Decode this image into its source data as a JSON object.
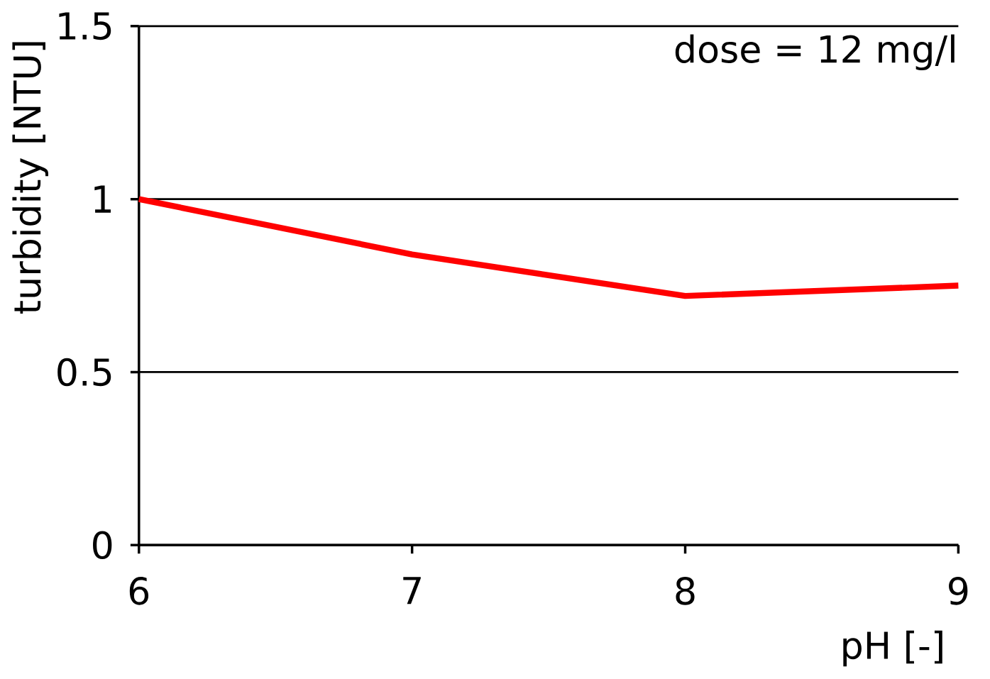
{
  "chart_data": {
    "type": "line",
    "x": [
      6,
      7,
      8,
      9
    ],
    "series": [
      {
        "color": "#ff0000",
        "values": [
          1.0,
          0.84,
          0.72,
          0.75
        ]
      }
    ],
    "xlabel": "pH [-]",
    "ylabel": "turbidity [NTU]",
    "annotations": [
      "dose = 12 mg/l"
    ],
    "xlim": [
      6,
      9
    ],
    "ylim": [
      0,
      1.5
    ],
    "xticks": [
      6,
      7,
      8,
      9
    ],
    "yticks": [
      0,
      0.5,
      1,
      1.5
    ],
    "grid": "y",
    "marker": "none",
    "line_style": "solid"
  }
}
